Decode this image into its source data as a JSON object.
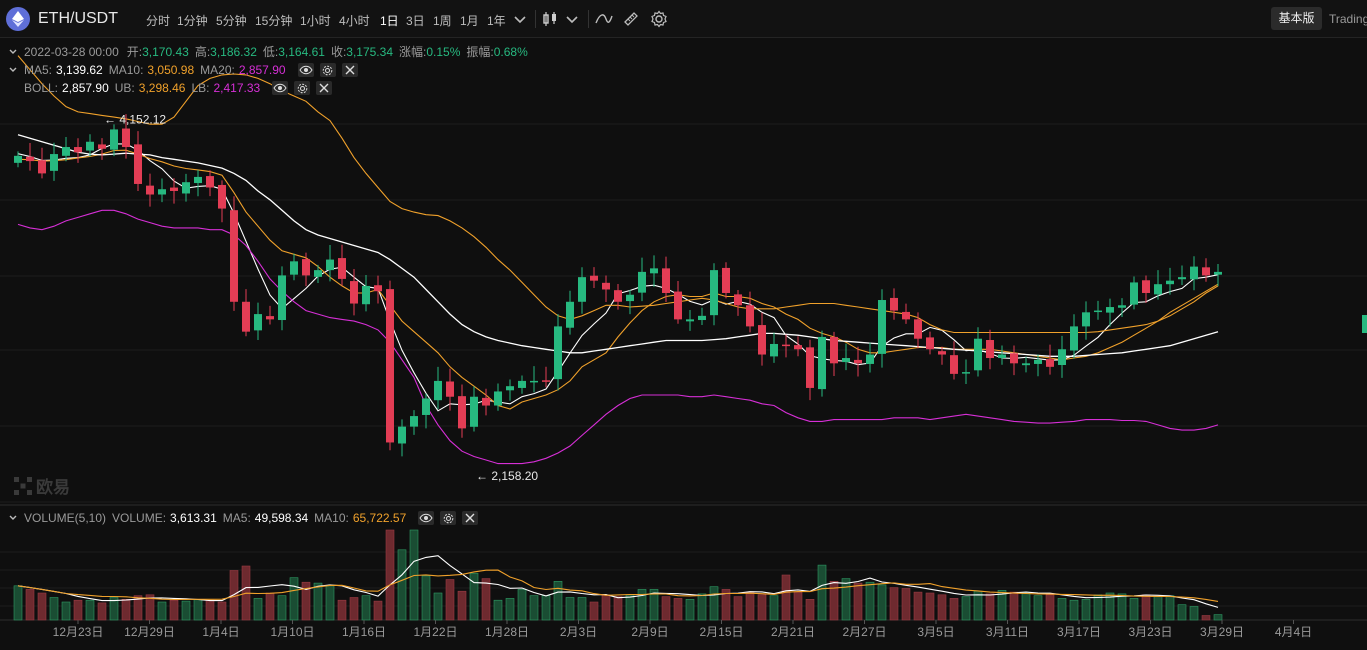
{
  "toolbar": {
    "symbol": "ETH/USDT",
    "intervals": [
      "分时",
      "1分钟",
      "5分钟",
      "15分钟",
      "1小时",
      "4小时",
      "1日",
      "3日",
      "1周",
      "1月",
      "1年"
    ],
    "active_interval": "1日",
    "basic_label": "基本版",
    "trading_label": "Trading",
    "icons": [
      "eth-logo-icon",
      "chevron-down-icon",
      "candlestick-icon",
      "line-tool-icon",
      "ruler-icon",
      "gear-icon"
    ]
  },
  "ohlc": {
    "date": "2022-03-28 00:00",
    "open_label": "开:",
    "open": "3,170.43",
    "high_label": "高:",
    "high": "3,186.32",
    "low_label": "低:",
    "low": "3,164.61",
    "close_label": "收:",
    "close": "3,175.34",
    "change_label": "涨幅:",
    "change": "0.15%",
    "amp_label": "振幅:",
    "amp": "0.68%"
  },
  "ma": {
    "ma5_label": "MA5:",
    "ma5": "3,139.62",
    "ma10_label": "MA10:",
    "ma10": "3,050.98",
    "ma20_label": "MA20:",
    "ma20": "2,857.90"
  },
  "boll": {
    "label": "BOLL:",
    "value": "2,857.90",
    "ub_label": "UB:",
    "ub": "3,298.46",
    "lb_label": "LB:",
    "lb": "2,417.33"
  },
  "volume": {
    "title": "VOLUME(5,10)",
    "vol_label": "VOLUME:",
    "vol": "3,613.31",
    "ma5_label": "MA5:",
    "ma5": "49,598.34",
    "ma10_label": "MA10:",
    "ma10": "65,722.57"
  },
  "watermark": "欧易",
  "colors": {
    "up": "#27b980",
    "down": "#e33d55",
    "vol_up": "#1a4d33",
    "vol_down": "#6e2a2f",
    "ma5": "#ffffff",
    "ma10": "#f0a12b",
    "ma20": "#ffffff",
    "ub": "#f0a12b",
    "lb": "#d62fd6"
  },
  "chart_data": {
    "type": "candlestick",
    "y_range": [
      2000,
      4650
    ],
    "annotations": [
      {
        "label": "← 4,152.12",
        "date": "12月27日",
        "value": 4152.12
      },
      {
        "label": "← 2,158.20",
        "date": "1月24日",
        "value": 2158.2
      }
    ],
    "x_ticks": [
      "12月23日",
      "12月29日",
      "1月4日",
      "1月10日",
      "1月16日",
      "1月22日",
      "1月28日",
      "2月3日",
      "2月9日",
      "2月15日",
      "2月21日",
      "2月27日",
      "3月5日",
      "3月11日",
      "3月17日",
      "3月23日",
      "3月29日",
      "4月4日"
    ],
    "closes": [
      3980,
      3950,
      3880,
      3990,
      4030,
      4000,
      4060,
      4020,
      4130,
      4030,
      3820,
      3760,
      3790,
      3780,
      3830,
      3860,
      3800,
      3680,
      3150,
      2980,
      3080,
      3050,
      3300,
      3380,
      3300,
      3330,
      3390,
      3280,
      3140,
      3240,
      3210,
      2350,
      2440,
      2500,
      2600,
      2700,
      2610,
      2430,
      2610,
      2560,
      2640,
      2670,
      2700,
      2700,
      2700,
      3010,
      3150,
      3290,
      3270,
      3220,
      3150,
      3190,
      3320,
      3340,
      3200,
      3050,
      3050,
      3070,
      3330,
      3200,
      3130,
      3010,
      2850,
      2910,
      2900,
      2880,
      2660,
      2950,
      2800,
      2830,
      2800,
      2850,
      3160,
      3100,
      3050,
      2940,
      2880,
      2850,
      2740,
      2750,
      2940,
      2830,
      2850,
      2800,
      2800,
      2820,
      2780,
      2880,
      3010,
      3090,
      3100,
      3120,
      3130,
      3260,
      3200,
      3250,
      3270,
      3290,
      3350,
      3300,
      3320
    ],
    "volumes": [
      38,
      34,
      30,
      25,
      20,
      22,
      22,
      19,
      25,
      23,
      27,
      28,
      20,
      22,
      21,
      23,
      22,
      20,
      55,
      60,
      24,
      30,
      27,
      47,
      42,
      41,
      38,
      22,
      25,
      27,
      21,
      100,
      78,
      100,
      49,
      30,
      45,
      32,
      52,
      46,
      22,
      24,
      34,
      27,
      27,
      43,
      25,
      25,
      20,
      28,
      26,
      28,
      34,
      34,
      26,
      24,
      23,
      29,
      37,
      34,
      26,
      31,
      28,
      27,
      50,
      31,
      23,
      61,
      43,
      46,
      41,
      42,
      39,
      36,
      35,
      31,
      30,
      28,
      24,
      26,
      32,
      29,
      33,
      31,
      30,
      27,
      28,
      24,
      22,
      23,
      28,
      30,
      29,
      24,
      28,
      26,
      27,
      17,
      15,
      5,
      6
    ],
    "series": [
      {
        "name": "MA5",
        "values": [
          3992,
          3976,
          3954,
          3956,
          3966,
          3970,
          3986,
          4022,
          4048,
          4048,
          4012,
          3952,
          3906,
          3836,
          3796,
          3806,
          3810,
          3790,
          3652,
          3494,
          3336,
          3188,
          3112,
          3168,
          3226,
          3296,
          3336,
          3346,
          3290,
          3236,
          3226,
          3042,
          2874,
          2746,
          2630,
          2530,
          2570,
          2564,
          2568,
          2590,
          2580,
          2570,
          2610,
          2628,
          2654,
          2754,
          2858,
          2958,
          3024,
          3086,
          3196,
          3214,
          3238,
          3244,
          3226,
          3192,
          3152,
          3132,
          3162,
          3136,
          3152,
          3136,
          3090,
          3060,
          2958,
          2910,
          2844,
          2826,
          2816,
          2812,
          2792,
          2802,
          2898,
          2944,
          2968,
          2968,
          3004,
          2988,
          2934,
          2872,
          2878,
          2856,
          2830,
          2828,
          2834,
          2826,
          2818,
          2820,
          2846,
          2898,
          2948,
          3020,
          3086,
          3146,
          3150,
          3184,
          3208,
          3226,
          3282,
          3290,
          3304
        ]
      },
      {
        "name": "MA10",
        "values": [
          3960,
          3958,
          3950,
          3952,
          3958,
          3968,
          3976,
          3990,
          4010,
          4012,
          3990,
          3964,
          3946,
          3922,
          3908,
          3900,
          3890,
          3870,
          3770,
          3660,
          3580,
          3500,
          3440,
          3420,
          3400,
          3350,
          3290,
          3240,
          3200,
          3200,
          3220,
          3130,
          3040,
          2980,
          2920,
          2860,
          2780,
          2720,
          2670,
          2620,
          2560,
          2540,
          2580,
          2600,
          2620,
          2650,
          2700,
          2780,
          2820,
          2860,
          2950,
          3030,
          3100,
          3150,
          3180,
          3190,
          3180,
          3180,
          3200,
          3180,
          3180,
          3170,
          3140,
          3120,
          3080,
          3050,
          3000,
          2970,
          2950,
          2920,
          2880,
          2860,
          2860,
          2870,
          2880,
          2890,
          2890,
          2890,
          2880,
          2880,
          2880,
          2880,
          2870,
          2860,
          2850,
          2840,
          2830,
          2820,
          2830,
          2840,
          2860,
          2890,
          2920,
          2960,
          3000,
          3040,
          3090,
          3130,
          3170,
          3210,
          3250
        ]
      },
      {
        "name": "MA20",
        "values": [
          4100,
          4080,
          4060,
          4040,
          4020,
          4000,
          3990,
          3985,
          3990,
          3995,
          3990,
          3985,
          3970,
          3960,
          3950,
          3940,
          3925,
          3910,
          3880,
          3840,
          3780,
          3730,
          3670,
          3610,
          3560,
          3530,
          3510,
          3490,
          3470,
          3450,
          3430,
          3390,
          3340,
          3290,
          3220,
          3150,
          3080,
          3020,
          2980,
          2950,
          2930,
          2915,
          2900,
          2890,
          2880,
          2870,
          2860,
          2860,
          2870,
          2880,
          2890,
          2900,
          2910,
          2920,
          2930,
          2930,
          2930,
          2930,
          2935,
          2940,
          2950,
          2960,
          2970,
          2970,
          2965,
          2960,
          2950,
          2940,
          2930,
          2925,
          2920,
          2915,
          2910,
          2905,
          2900,
          2895,
          2890,
          2885,
          2880,
          2875,
          2870,
          2865,
          2860,
          2855,
          2850,
          2845,
          2840,
          2840,
          2840,
          2845,
          2850,
          2855,
          2860,
          2870,
          2880,
          2890,
          2900,
          2920,
          2940,
          2960,
          2980
        ]
      },
      {
        "name": "UB",
        "values": [
          4550,
          4470,
          4390,
          4320,
          4260,
          4230,
          4220,
          4210,
          4200,
          4190,
          4175,
          4160,
          4160,
          4200,
          4290,
          4380,
          4420,
          4440,
          4445,
          4440,
          4420,
          4390,
          4350,
          4320,
          4290,
          4230,
          4180,
          4080,
          3970,
          3880,
          3800,
          3720,
          3680,
          3660,
          3645,
          3640,
          3610,
          3570,
          3520,
          3460,
          3390,
          3330,
          3260,
          3190,
          3120,
          3070,
          3050,
          3070,
          3100,
          3130,
          3130,
          3120,
          3125,
          3130,
          3140,
          3150,
          3160,
          3170,
          3160,
          3140,
          3120,
          3110,
          3110,
          3110,
          3120,
          3130,
          3140,
          3140,
          3140,
          3130,
          3120,
          3110,
          3100,
          3090,
          3080,
          3060,
          3020,
          2990,
          2975,
          2975,
          2975,
          2975,
          2975,
          2975,
          2975,
          2975,
          2975,
          2975,
          2975,
          2975,
          2980,
          2990,
          3000,
          3010,
          3020,
          3040,
          3070,
          3110,
          3150,
          3200,
          3240
        ]
      },
      {
        "name": "LB",
        "values": [
          3590,
          3570,
          3560,
          3580,
          3610,
          3630,
          3650,
          3670,
          3670,
          3650,
          3620,
          3600,
          3580,
          3570,
          3570,
          3570,
          3560,
          3560,
          3530,
          3470,
          3380,
          3280,
          3210,
          3150,
          3100,
          3080,
          3060,
          3050,
          3040,
          3020,
          2990,
          2920,
          2820,
          2720,
          2560,
          2450,
          2360,
          2300,
          2270,
          2250,
          2230,
          2230,
          2230,
          2240,
          2260,
          2290,
          2330,
          2390,
          2450,
          2510,
          2560,
          2600,
          2620,
          2620,
          2620,
          2620,
          2610,
          2610,
          2620,
          2610,
          2600,
          2590,
          2570,
          2560,
          2520,
          2490,
          2470,
          2470,
          2480,
          2480,
          2480,
          2480,
          2480,
          2490,
          2490,
          2490,
          2480,
          2490,
          2500,
          2510,
          2500,
          2490,
          2480,
          2470,
          2465,
          2460,
          2460,
          2465,
          2470,
          2480,
          2480,
          2480,
          2475,
          2475,
          2470,
          2450,
          2430,
          2420,
          2420,
          2430,
          2450
        ]
      }
    ]
  }
}
